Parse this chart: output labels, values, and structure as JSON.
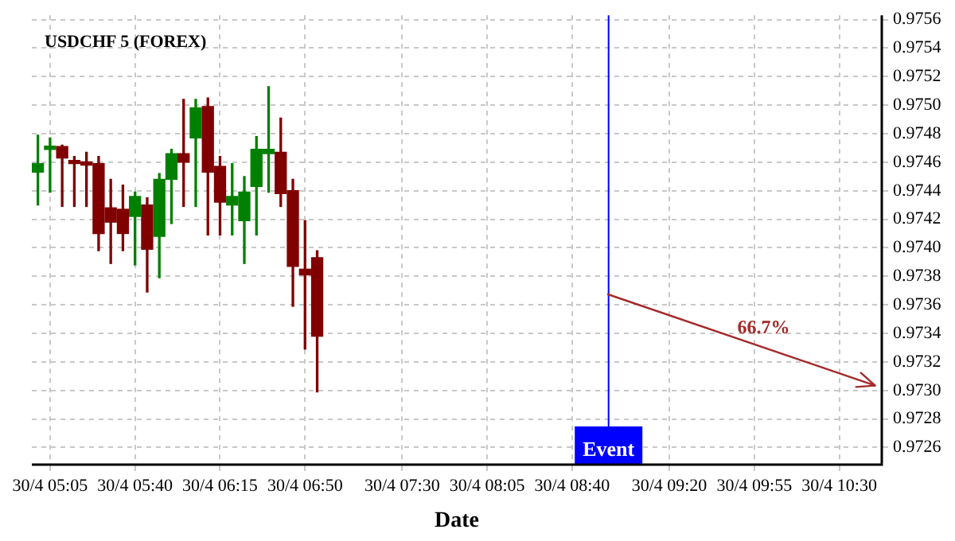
{
  "chart_data": {
    "type": "candlestick",
    "title": "USDCHF 5 (FOREX)",
    "xlabel": "Date",
    "categories": [
      null,
      "30/4 05:05",
      null,
      null,
      null,
      null,
      null,
      null,
      "30/4 05:40",
      null,
      null,
      null,
      null,
      null,
      null,
      "30/4 06:15",
      null,
      null,
      null,
      null,
      null,
      null,
      "30/4 06:50",
      null,
      null,
      null,
      null,
      null,
      null,
      null,
      "30/4 07:30",
      null,
      null,
      null,
      null,
      null,
      null,
      "30/4 08:05",
      null,
      null,
      null,
      null,
      null,
      null,
      "30/4 08:40",
      null,
      null,
      null,
      null,
      null,
      null,
      null,
      "30/4 09:20",
      null,
      null,
      null,
      null,
      null,
      null,
      "30/4 09:55",
      null,
      null,
      null,
      null,
      null,
      null,
      "30/4 10:30",
      null,
      null,
      null
    ],
    "ohlc": [
      [
        0.97453,
        0.97479,
        0.9743,
        0.97459
      ],
      [
        0.97469,
        0.97477,
        0.97439,
        0.9747
      ],
      [
        0.97471,
        0.97472,
        0.97429,
        0.97463
      ],
      [
        0.9746,
        0.97464,
        0.97429,
        0.97459
      ],
      [
        0.97459,
        0.97467,
        0.97429,
        0.97458
      ],
      [
        0.97459,
        0.97464,
        0.97398,
        0.9741
      ],
      [
        0.97428,
        0.97448,
        0.97389,
        0.97418
      ],
      [
        0.97427,
        0.97444,
        0.97398,
        0.9741
      ],
      [
        0.97422,
        0.97439,
        0.97388,
        0.97436
      ],
      [
        0.9743,
        0.97435,
        0.97369,
        0.97399
      ],
      [
        0.97408,
        0.97452,
        0.97379,
        0.97448
      ],
      [
        0.97448,
        0.97469,
        0.97417,
        0.97466
      ],
      [
        0.97466,
        0.97504,
        0.97429,
        0.9746
      ],
      [
        0.97477,
        0.97504,
        0.97429,
        0.97498
      ],
      [
        0.97499,
        0.97505,
        0.97409,
        0.97453
      ],
      [
        0.97457,
        0.97464,
        0.97409,
        0.97432
      ],
      [
        0.9743,
        0.97459,
        0.97409,
        0.97436
      ],
      [
        0.97419,
        0.9745,
        0.97389,
        0.97439
      ],
      [
        0.97443,
        0.97478,
        0.97409,
        0.97469
      ],
      [
        0.97466,
        0.97513,
        0.97439,
        0.97469
      ],
      [
        0.97467,
        0.97491,
        0.97429,
        0.97438
      ],
      [
        0.9744,
        0.97448,
        0.97359,
        0.97387
      ],
      [
        0.97385,
        0.97419,
        0.97329,
        0.97381
      ],
      [
        0.97393,
        0.97398,
        0.97299,
        0.97338
      ],
      null,
      null,
      null,
      null,
      null,
      null,
      null,
      null,
      null,
      null,
      null,
      null,
      null,
      null,
      null,
      null,
      null,
      null,
      null,
      null,
      null,
      null,
      null,
      null,
      null,
      null,
      null,
      null,
      null,
      null,
      null,
      null,
      null,
      null,
      null,
      null,
      null,
      null,
      null,
      null,
      null,
      null,
      null,
      null,
      null,
      null
    ],
    "colors": [
      "#008000",
      "#008000",
      "#800000",
      "#800000",
      "#800000",
      "#800000",
      "#800000",
      "#800000",
      "#008000",
      "#800000",
      "#008000",
      "#008000",
      "#800000",
      "#008000",
      "#800000",
      "#800000",
      "#008000",
      "#008000",
      "#008000",
      "#008000",
      "#800000",
      "#800000",
      "#800000",
      "#800000",
      null,
      null,
      null,
      null,
      null,
      null,
      null,
      null,
      null,
      null,
      null,
      null,
      null,
      null,
      null,
      null,
      null,
      null,
      null,
      null,
      null,
      null,
      null,
      null,
      null,
      null,
      null,
      null,
      null,
      null,
      null,
      null,
      null,
      null,
      null,
      null,
      null,
      null,
      null,
      null,
      null,
      null,
      null,
      null,
      null,
      null
    ],
    "annotations": [
      "66.7%",
      "Event"
    ],
    "ylim": [
      0.97248,
      0.97563
    ],
    "yticks": [
      0.9726,
      0.9728,
      {
        "value": 0.973,
        "label": "0.9730"
      },
      0.9732,
      0.9734,
      0.9736,
      0.9738,
      {
        "value": 0.974,
        "label": "0.9740"
      },
      0.9742,
      0.9744,
      0.9746,
      0.9748,
      {
        "value": 0.975,
        "label": "0.9750"
      },
      0.9752,
      0.9754,
      0.9756
    ],
    "grid": true,
    "legend": false
  }
}
